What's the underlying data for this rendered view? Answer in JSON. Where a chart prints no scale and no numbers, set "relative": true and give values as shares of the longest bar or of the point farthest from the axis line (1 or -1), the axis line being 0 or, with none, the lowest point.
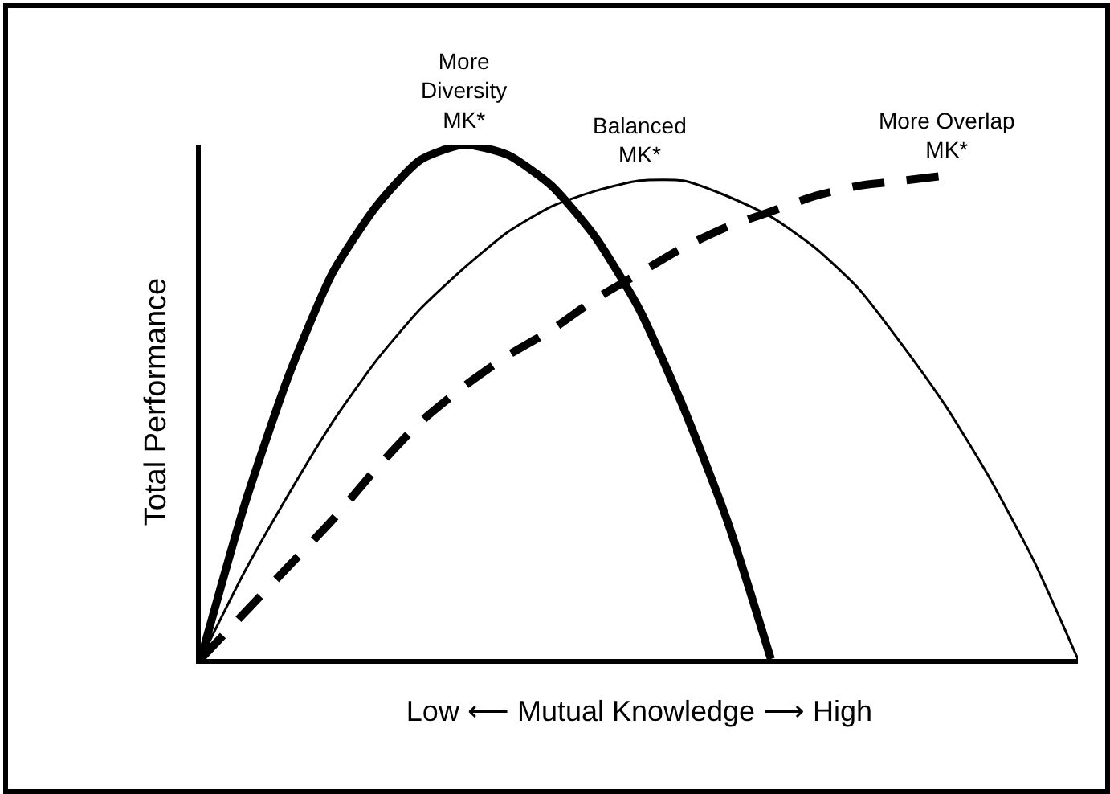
{
  "chart_data": {
    "type": "line",
    "relative": true,
    "xlabel": "Low ⟵ Mutual Knowledge ⟶ High",
    "ylabel": "Total Performance",
    "categories": [
      null,
      null,
      null,
      null,
      null,
      null,
      null,
      null,
      null,
      null,
      null,
      null,
      null,
      null,
      null,
      null,
      null,
      null,
      null,
      null,
      null
    ],
    "series": [
      {
        "color": "#000000",
        "values": [
          0,
          0.3,
          0.55,
          0.75,
          0.88,
          0.97,
          1.0,
          0.98,
          0.92,
          0.82,
          0.68,
          0.49,
          0.27,
          0,
          null,
          null,
          null,
          null,
          null,
          null,
          null
        ]
      },
      {
        "color": "#000000",
        "values": [
          0,
          0.17,
          0.32,
          0.46,
          0.58,
          0.68,
          0.76,
          0.83,
          0.88,
          0.91,
          0.93,
          0.93,
          0.9,
          0.86,
          0.8,
          0.72,
          0.61,
          0.49,
          0.35,
          0.19,
          0
        ]
      },
      {
        "color": "#000000",
        "line_style": "dashed",
        "values": [
          0,
          0.09,
          0.18,
          0.27,
          0.37,
          0.46,
          0.53,
          0.59,
          0.64,
          0.7,
          0.75,
          0.8,
          0.84,
          0.87,
          0.9,
          0.92,
          0.93,
          0.94,
          null,
          null,
          null
        ]
      }
    ],
    "annotations": [
      "More\nDiversity\nMK*",
      "Balanced\nMK*",
      "More Overlap\nMK*"
    ]
  }
}
